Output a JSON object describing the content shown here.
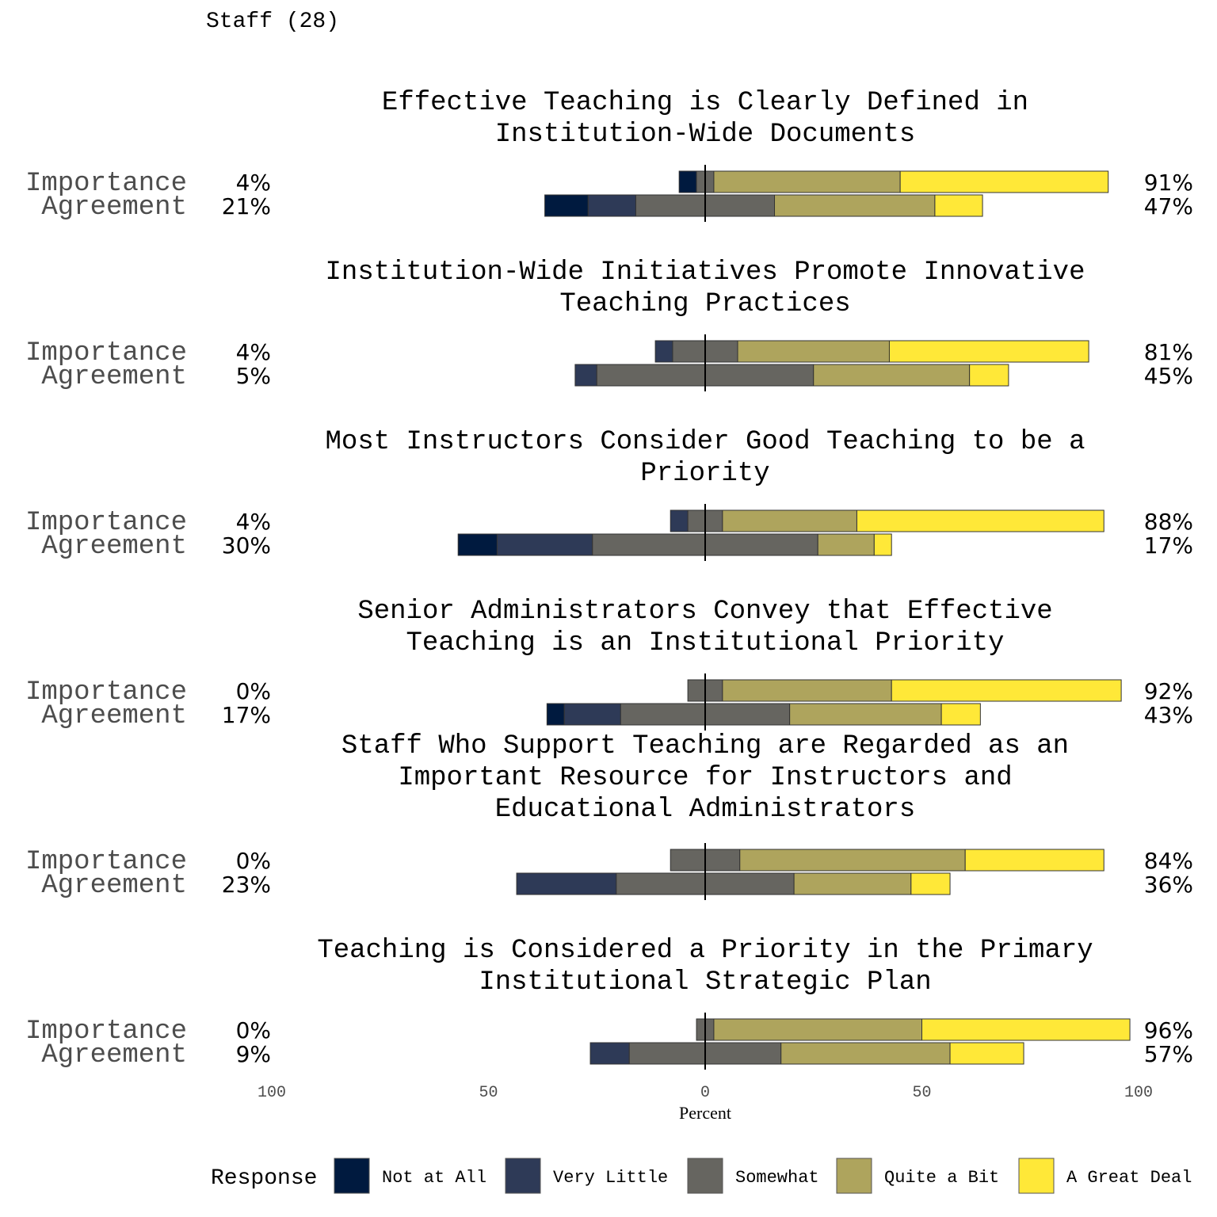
{
  "header": {
    "title": "Staff (28)"
  },
  "colors": {
    "Not at All": "#001a3f",
    "Very Little": "#2e3a57",
    "Somewhat": "#666560",
    "Quite a Bit": "#aea45d",
    "A Great Deal": "#ffe838"
  },
  "chart_data": {
    "type": "bar",
    "subtype": "diverging-stacked",
    "xlabel": "Percent",
    "xlim": [
      -100,
      100
    ],
    "xticks": [
      -100,
      -50,
      0,
      50,
      100
    ],
    "xtick_labels": [
      "100",
      "50",
      "0",
      "50",
      "100"
    ],
    "legend": {
      "title": "Response",
      "position": "bottom",
      "entries": [
        "Not at All",
        "Very Little",
        "Somewhat",
        "Quite a Bit",
        "A Great Deal"
      ]
    },
    "panels": [
      {
        "title_lines": [
          "Effective Teaching is Clearly Defined in",
          "Institution-Wide Documents"
        ],
        "rows": [
          {
            "label": "Importance",
            "values": [
              4,
              0,
              4,
              43,
              48
            ],
            "left_pct": "4%",
            "right_pct": "91%"
          },
          {
            "label": "Agreement",
            "values": [
              10,
              11,
              32,
              37,
              11
            ],
            "left_pct": "21%",
            "right_pct": "47%"
          }
        ]
      },
      {
        "title_lines": [
          "Institution-Wide Initiatives Promote Innovative",
          "Teaching Practices"
        ],
        "rows": [
          {
            "label": "Importance",
            "values": [
              0,
              4,
              15,
              35,
              46
            ],
            "left_pct": "4%",
            "right_pct": "81%"
          },
          {
            "label": "Agreement",
            "values": [
              0,
              5,
              50,
              36,
              9
            ],
            "left_pct": "5%",
            "right_pct": "45%"
          }
        ]
      },
      {
        "title_lines": [
          "Most Instructors Consider Good Teaching to be a",
          "Priority"
        ],
        "rows": [
          {
            "label": "Importance",
            "values": [
              0,
              4,
              8,
              31,
              57
            ],
            "left_pct": "4%",
            "right_pct": "88%"
          },
          {
            "label": "Agreement",
            "values": [
              9,
              22,
              52,
              13,
              4
            ],
            "left_pct": "30%",
            "right_pct": "17%"
          }
        ]
      },
      {
        "title_lines": [
          "Senior Administrators Convey that Effective",
          "Teaching is an Institutional Priority"
        ],
        "rows": [
          {
            "label": "Importance",
            "values": [
              0,
              0,
              8,
              39,
              53
            ],
            "left_pct": "0%",
            "right_pct": "92%"
          },
          {
            "label": "Agreement",
            "values": [
              4,
              13,
              39,
              35,
              9
            ],
            "left_pct": "17%",
            "right_pct": "43%"
          }
        ]
      },
      {
        "title_lines": [
          "Staff Who Support Teaching are Regarded as an",
          "Important Resource for Instructors and",
          "Educational Administrators"
        ],
        "rows": [
          {
            "label": "Importance",
            "values": [
              0,
              0,
              16,
              52,
              32
            ],
            "left_pct": "0%",
            "right_pct": "84%"
          },
          {
            "label": "Agreement",
            "values": [
              0,
              23,
              41,
              27,
              9
            ],
            "left_pct": "23%",
            "right_pct": "36%"
          }
        ]
      },
      {
        "title_lines": [
          "Teaching is Considered a Priority in the Primary",
          "Institutional Strategic Plan"
        ],
        "rows": [
          {
            "label": "Importance",
            "values": [
              0,
              0,
              4,
              48,
              48
            ],
            "left_pct": "0%",
            "right_pct": "96%"
          },
          {
            "label": "Agreement",
            "values": [
              0,
              9,
              35,
              39,
              17
            ],
            "left_pct": "9%",
            "right_pct": "57%"
          }
        ]
      }
    ]
  }
}
